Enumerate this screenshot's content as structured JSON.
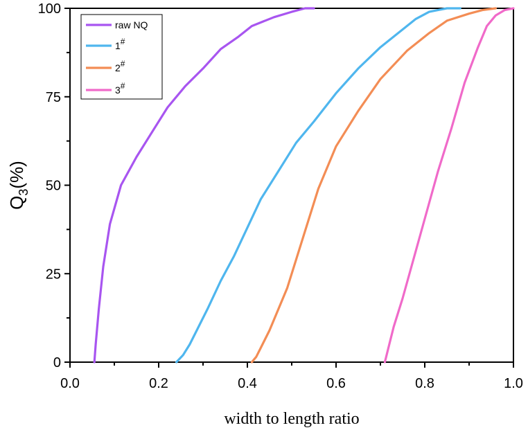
{
  "chart_data": {
    "type": "line",
    "title": "",
    "xlabel": "width to length ratio",
    "ylabel": {
      "main": "Q",
      "sub": "3",
      "suffix": "(%)"
    },
    "xlim": [
      0.0,
      1.0
    ],
    "ylim": [
      0,
      100
    ],
    "xticks": [
      0.0,
      0.2,
      0.4,
      0.6,
      0.8,
      1.0
    ],
    "xtick_labels": [
      "0.0",
      "0.2",
      "0.4",
      "0.6",
      "0.8",
      "1.0"
    ],
    "yticks": [
      0,
      25,
      50,
      75,
      100
    ],
    "ytick_labels": [
      "0",
      "25",
      "50",
      "75",
      "100"
    ],
    "grid": false,
    "legend_position": "top-left",
    "series": [
      {
        "name": "raw NQ",
        "label_main": "raw NQ",
        "label_sup": "",
        "color": "#a855f0",
        "x": [
          0.055,
          0.058,
          0.065,
          0.075,
          0.09,
          0.115,
          0.15,
          0.19,
          0.22,
          0.26,
          0.3,
          0.34,
          0.38,
          0.41,
          0.46,
          0.5,
          0.53,
          0.55
        ],
        "y": [
          0,
          5,
          15,
          27,
          39,
          50,
          58,
          66,
          72,
          78,
          83,
          88.5,
          92,
          95,
          97.5,
          99,
          100,
          100
        ]
      },
      {
        "name": "1#",
        "label_main": "1",
        "label_sup": "#",
        "color": "#4fb6ee",
        "x": [
          0.24,
          0.255,
          0.27,
          0.29,
          0.31,
          0.34,
          0.37,
          0.4,
          0.43,
          0.47,
          0.51,
          0.55,
          0.6,
          0.65,
          0.7,
          0.74,
          0.78,
          0.81,
          0.85,
          0.88
        ],
        "y": [
          0,
          2,
          5,
          10,
          15,
          23,
          30,
          38,
          46,
          54,
          62,
          68,
          76,
          83,
          89,
          93,
          97,
          99,
          100,
          100
        ]
      },
      {
        "name": "2#",
        "label_main": "2",
        "label_sup": "#",
        "color": "#f38d55",
        "x": [
          0.41,
          0.42,
          0.43,
          0.45,
          0.47,
          0.49,
          0.51,
          0.53,
          0.56,
          0.6,
          0.65,
          0.7,
          0.76,
          0.81,
          0.85,
          0.9,
          0.93,
          0.96
        ],
        "y": [
          0,
          1.5,
          4,
          9,
          15,
          21,
          29,
          37,
          49,
          61,
          71,
          80,
          88,
          93,
          96.5,
          98.5,
          99.5,
          100
        ]
      },
      {
        "name": "3#",
        "label_main": "3",
        "label_sup": "#",
        "color": "#f06ac9",
        "x": [
          0.71,
          0.72,
          0.73,
          0.75,
          0.77,
          0.79,
          0.81,
          0.83,
          0.86,
          0.89,
          0.92,
          0.94,
          0.96,
          0.98,
          1.0
        ],
        "y": [
          0,
          5,
          10,
          18,
          27,
          36,
          45,
          54,
          66,
          79,
          89,
          95,
          98,
          99.5,
          100
        ]
      }
    ]
  }
}
